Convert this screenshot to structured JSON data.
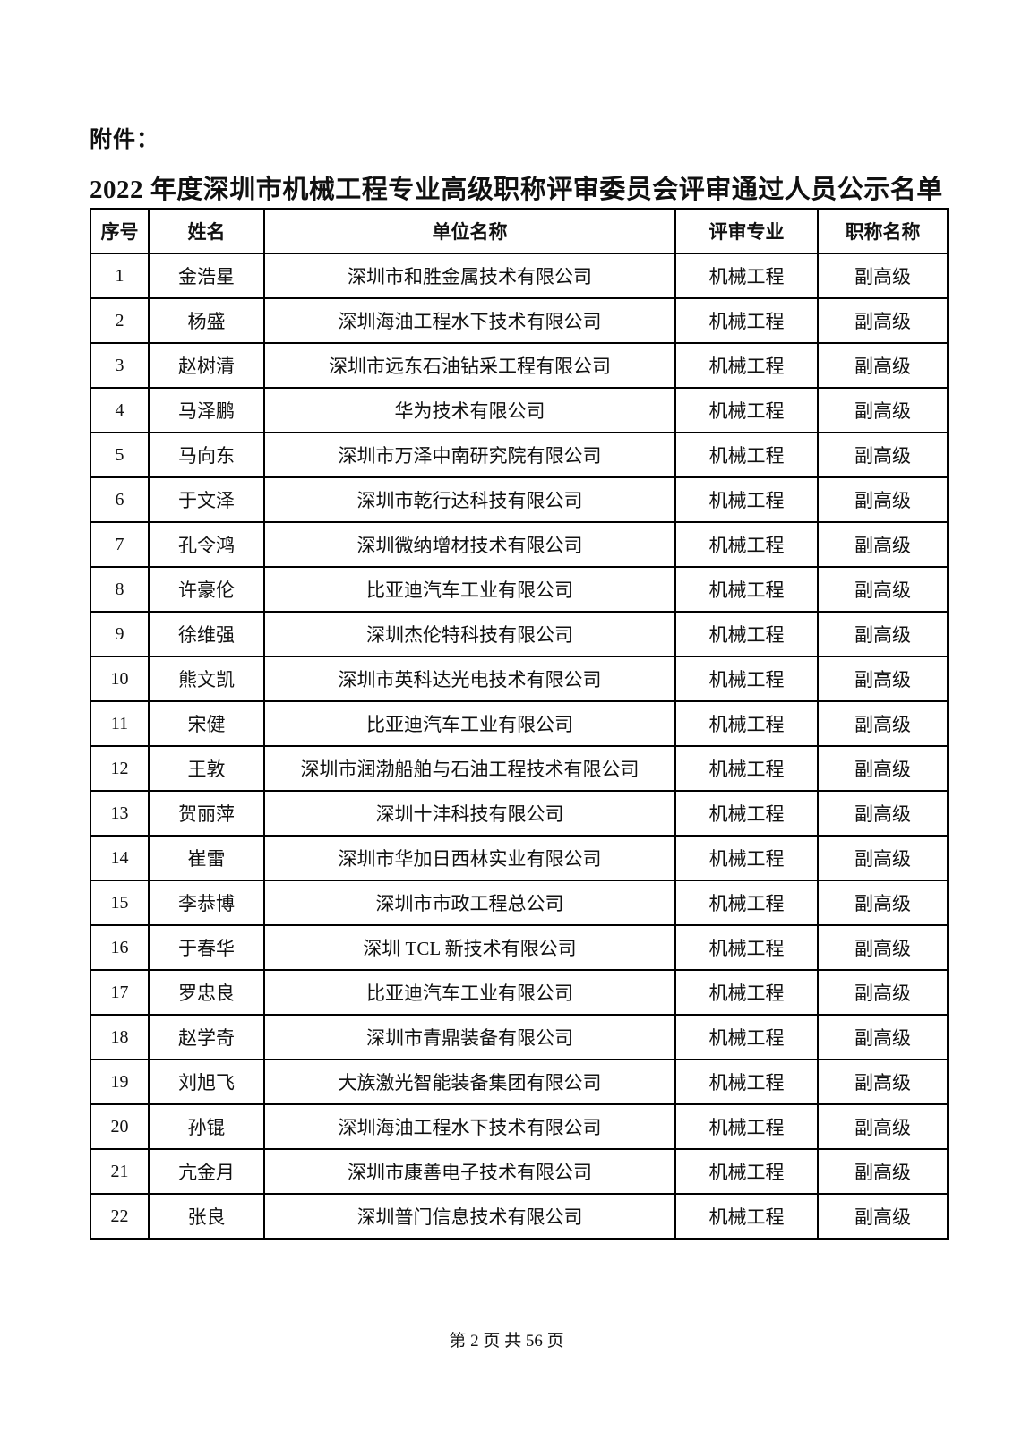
{
  "page": {
    "attachment_label": "附件：",
    "title": "2022 年度深圳市机械工程专业高级职称评审委员会评审通过人员公示名单",
    "footer": "第 2 页 共 56 页"
  },
  "table": {
    "headers": [
      "序号",
      "姓名",
      "单位名称",
      "评审专业",
      "职称名称"
    ],
    "rows": [
      [
        "1",
        "金浩星",
        "深圳市和胜金属技术有限公司",
        "机械工程",
        "副高级"
      ],
      [
        "2",
        "杨盛",
        "深圳海油工程水下技术有限公司",
        "机械工程",
        "副高级"
      ],
      [
        "3",
        "赵树清",
        "深圳市远东石油钻采工程有限公司",
        "机械工程",
        "副高级"
      ],
      [
        "4",
        "马泽鹏",
        "华为技术有限公司",
        "机械工程",
        "副高级"
      ],
      [
        "5",
        "马向东",
        "深圳市万泽中南研究院有限公司",
        "机械工程",
        "副高级"
      ],
      [
        "6",
        "于文泽",
        "深圳市乾行达科技有限公司",
        "机械工程",
        "副高级"
      ],
      [
        "7",
        "孔令鸿",
        "深圳微纳增材技术有限公司",
        "机械工程",
        "副高级"
      ],
      [
        "8",
        "许豪伦",
        "比亚迪汽车工业有限公司",
        "机械工程",
        "副高级"
      ],
      [
        "9",
        "徐维强",
        "深圳杰伦特科技有限公司",
        "机械工程",
        "副高级"
      ],
      [
        "10",
        "熊文凯",
        "深圳市英科达光电技术有限公司",
        "机械工程",
        "副高级"
      ],
      [
        "11",
        "宋健",
        "比亚迪汽车工业有限公司",
        "机械工程",
        "副高级"
      ],
      [
        "12",
        "王敦",
        "深圳市润渤船舶与石油工程技术有限公司",
        "机械工程",
        "副高级"
      ],
      [
        "13",
        "贺丽萍",
        "深圳十沣科技有限公司",
        "机械工程",
        "副高级"
      ],
      [
        "14",
        "崔雷",
        "深圳市华加日西林实业有限公司",
        "机械工程",
        "副高级"
      ],
      [
        "15",
        "李恭博",
        "深圳市市政工程总公司",
        "机械工程",
        "副高级"
      ],
      [
        "16",
        "于春华",
        "深圳 TCL 新技术有限公司",
        "机械工程",
        "副高级"
      ],
      [
        "17",
        "罗忠良",
        "比亚迪汽车工业有限公司",
        "机械工程",
        "副高级"
      ],
      [
        "18",
        "赵学奇",
        "深圳市青鼎装备有限公司",
        "机械工程",
        "副高级"
      ],
      [
        "19",
        "刘旭飞",
        "大族激光智能装备集团有限公司",
        "机械工程",
        "副高级"
      ],
      [
        "20",
        "孙锟",
        "深圳海油工程水下技术有限公司",
        "机械工程",
        "副高级"
      ],
      [
        "21",
        "亢金月",
        "深圳市康善电子技术有限公司",
        "机械工程",
        "副高级"
      ],
      [
        "22",
        "张良",
        "深圳普门信息技术有限公司",
        "机械工程",
        "副高级"
      ]
    ]
  }
}
